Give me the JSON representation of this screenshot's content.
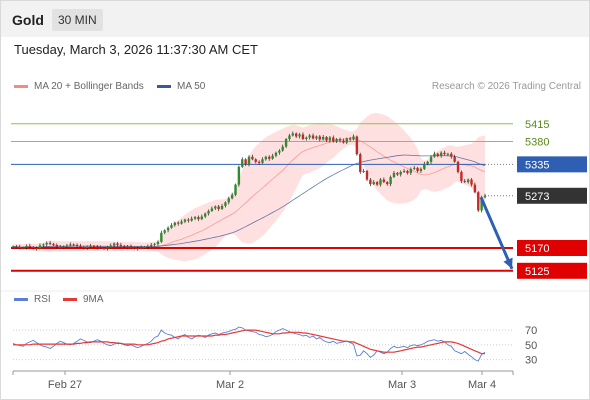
{
  "header": {
    "instrument": "Gold",
    "timeframe": "30 MIN"
  },
  "timestamp": "Tuesday, March 3, 2026 11:37:30 AM CET",
  "credit": "Research © 2026 Trading Central",
  "colors": {
    "ma20": "#f28b82",
    "ma50": "#3b5998",
    "band": "#ffe0e0",
    "resistance": "#8cc63f",
    "pivot": "#2f5fb3",
    "support": "#e00000",
    "bull": "#2e8b2e",
    "bear": "#c62828",
    "rsi": "#5b7fd6",
    "rsi_ma": "#e53935",
    "arrow": "#2f5fb3"
  },
  "chart_data": [
    {
      "type": "candlestick",
      "legend": [
        {
          "label": "MA 20 + Bollinger Bands",
          "color": "#f28b82"
        },
        {
          "label": "MA 50",
          "color": "#3b5998"
        }
      ],
      "x_tick_labels": [
        "Feb 27",
        "Mar 2",
        "Mar 3",
        "Mar 4"
      ],
      "ylim": [
        5095,
        5460
      ],
      "levels": [
        {
          "value": 5415,
          "label": "5415",
          "kind": "resistance",
          "color": "#8cc63f"
        },
        {
          "value": 5380,
          "label": "5380",
          "kind": "resistance",
          "color": "#8cc63f"
        },
        {
          "value": 5335,
          "label": "5335",
          "kind": "pivot",
          "color": "#2f5fb3"
        },
        {
          "value": 5273,
          "label": "5273",
          "kind": "last",
          "color": "#333333"
        },
        {
          "value": 5170,
          "label": "5170",
          "kind": "support",
          "color": "#e00000"
        },
        {
          "value": 5125,
          "label": "5125",
          "kind": "support",
          "color": "#e00000"
        }
      ],
      "close": [
        5173,
        5172,
        5170,
        5171,
        5174,
        5172,
        5170,
        5169,
        5175,
        5177,
        5180,
        5178,
        5176,
        5172,
        5171,
        5173,
        5175,
        5177,
        5176,
        5174,
        5172,
        5170,
        5172,
        5174,
        5173,
        5171,
        5170,
        5169,
        5171,
        5175,
        5179,
        5176,
        5174,
        5172,
        5173,
        5171,
        5170,
        5169,
        5171,
        5172,
        5174,
        5176,
        5178,
        5182,
        5200,
        5205,
        5210,
        5215,
        5220,
        5218,
        5222,
        5226,
        5224,
        5228,
        5231,
        5227,
        5232,
        5238,
        5243,
        5248,
        5252,
        5247,
        5253,
        5260,
        5268,
        5275,
        5295,
        5330,
        5345,
        5335,
        5350,
        5345,
        5340,
        5338,
        5345,
        5350,
        5346,
        5352,
        5358,
        5362,
        5370,
        5385,
        5392,
        5396,
        5390,
        5394,
        5385,
        5388,
        5392,
        5386,
        5390,
        5384,
        5389,
        5382,
        5388,
        5380,
        5385,
        5382,
        5378,
        5386,
        5384,
        5390,
        5355,
        5320,
        5322,
        5305,
        5296,
        5300,
        5295,
        5305,
        5300,
        5296,
        5310,
        5318,
        5315,
        5320,
        5322,
        5318,
        5326,
        5328,
        5322,
        5326,
        5336,
        5340,
        5350,
        5356,
        5352,
        5358,
        5355,
        5356,
        5350,
        5340,
        5320,
        5302,
        5300,
        5305,
        5295,
        5280,
        5244,
        5270,
        5273
      ],
      "forecast_arrow": {
        "from": 5270,
        "to": 5125
      }
    },
    {
      "type": "line",
      "legend": [
        {
          "label": "RSI",
          "color": "#5b7fd6"
        },
        {
          "label": "9MA",
          "color": "#e53935"
        }
      ],
      "y_tick_labels": [
        "70",
        "50",
        "30"
      ],
      "ylim": [
        20,
        85
      ],
      "series": [
        {
          "name": "RSI",
          "values": [
            52,
            50,
            49,
            48,
            52,
            54,
            56,
            53,
            50,
            48,
            47,
            45,
            48,
            52,
            55,
            53,
            51,
            50,
            52,
            55,
            58,
            56,
            54,
            53,
            55,
            57,
            55,
            52,
            50,
            49,
            51,
            53,
            52,
            50,
            49,
            50,
            48,
            46,
            48,
            50,
            52,
            55,
            60,
            62,
            70,
            66,
            64,
            63,
            60,
            58,
            62,
            64,
            60,
            58,
            61,
            63,
            62,
            60,
            63,
            65,
            66,
            64,
            66,
            67,
            68,
            70,
            71,
            74,
            73,
            70,
            69,
            68,
            67,
            64,
            63,
            61,
            62,
            64,
            68,
            70,
            72,
            70,
            68,
            66,
            65,
            64,
            62,
            63,
            60,
            62,
            58,
            60,
            56,
            54,
            53,
            55,
            52,
            53,
            54,
            55,
            53,
            51,
            35,
            36,
            42,
            38,
            33,
            36,
            42,
            40,
            38,
            40,
            45,
            48,
            46,
            47,
            48,
            46,
            49,
            50,
            49,
            50,
            52,
            55,
            56,
            57,
            55,
            56,
            54,
            50,
            48,
            42,
            40,
            38,
            41,
            37,
            34,
            30,
            28,
            37,
            40
          ]
        },
        {
          "name": "9MA",
          "values": [
            50,
            50,
            50,
            50,
            50,
            50,
            51,
            51,
            51,
            51,
            51,
            51,
            51,
            51,
            51,
            51,
            51,
            51,
            51,
            52,
            52,
            53,
            53,
            54,
            54,
            54,
            54,
            54,
            54,
            53,
            53,
            52,
            52,
            51,
            51,
            51,
            51,
            50,
            50,
            50,
            50,
            51,
            52,
            53,
            55,
            56,
            58,
            59,
            60,
            61,
            62,
            62,
            62,
            62,
            62,
            62,
            62,
            62,
            62,
            62,
            63,
            63,
            64,
            64,
            65,
            66,
            67,
            68,
            69,
            70,
            70,
            70,
            70,
            69,
            68,
            67,
            66,
            65,
            65,
            65,
            66,
            66,
            67,
            67,
            67,
            67,
            66,
            66,
            65,
            64,
            63,
            62,
            61,
            60,
            59,
            58,
            57,
            56,
            55,
            55,
            54,
            54,
            52,
            50,
            48,
            46,
            44,
            43,
            42,
            41,
            40,
            40,
            40,
            40,
            41,
            42,
            43,
            44,
            45,
            46,
            47,
            47,
            48,
            49,
            50,
            51,
            52,
            53,
            54,
            54,
            54,
            53,
            52,
            50,
            48,
            46,
            44,
            42,
            40,
            38,
            38
          ]
        }
      ]
    }
  ]
}
